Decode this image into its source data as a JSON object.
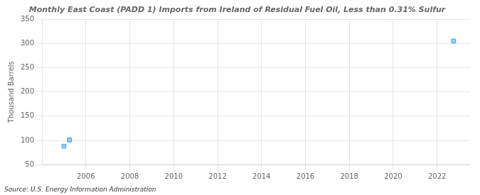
{
  "chart_data": {
    "type": "scatter",
    "title": "Monthly East Coast (PADD 1) Imports from Ireland of Residual Fuel Oil, Less than 0.31% Sulfur",
    "ylabel": "Thousand Barrels",
    "source": "Source: U.S. Energy Information Administration",
    "x": [
      2005.0,
      2005.25,
      2022.75
    ],
    "values": [
      88,
      101,
      305
    ],
    "marker": "square",
    "xlim": [
      2004.0,
      2023.5
    ],
    "ylim": [
      50,
      350
    ],
    "xticks": [
      2006,
      2008,
      2010,
      2012,
      2014,
      2016,
      2018,
      2020,
      2022
    ],
    "yticks": [
      50,
      100,
      150,
      200,
      250,
      300,
      350
    ],
    "grid": true
  }
}
